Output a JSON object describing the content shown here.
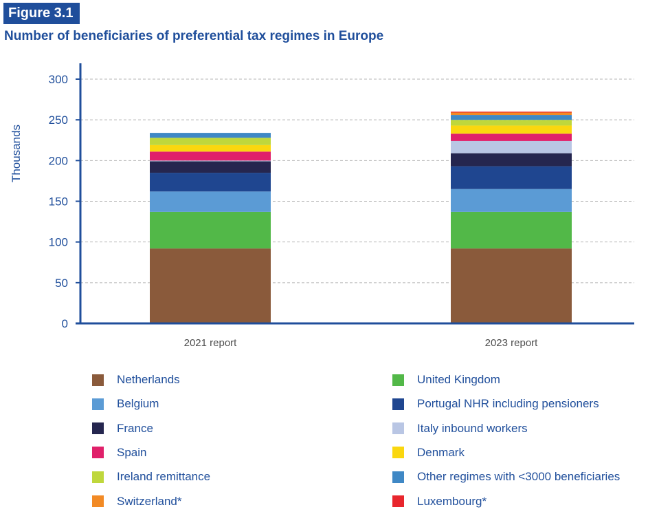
{
  "figure": {
    "label": "Figure 3.1",
    "title": "Number of beneficiaries of preferential tax regimes in Europe"
  },
  "chart_data": {
    "type": "bar",
    "stacked": true,
    "categories": [
      "2021 report",
      "2023 report"
    ],
    "ylabel": "Thousands",
    "ylim": [
      0,
      300
    ],
    "yticks": [
      0,
      50,
      100,
      150,
      200,
      250,
      300
    ],
    "grid": true,
    "legend_position": "bottom",
    "series": [
      {
        "name": "Netherlands",
        "color": "#8a5a3b",
        "values": [
          92,
          92
        ]
      },
      {
        "name": "United Kingdom",
        "color": "#52b848",
        "values": [
          45,
          45
        ]
      },
      {
        "name": "Belgium",
        "color": "#5b9bd5",
        "values": [
          25,
          28
        ]
      },
      {
        "name": "Portugal NHR including pensioners",
        "color": "#1f4690",
        "values": [
          23,
          28
        ]
      },
      {
        "name": "France",
        "color": "#25264f",
        "values": [
          14,
          16
        ]
      },
      {
        "name": "Italy inbound workers",
        "color": "#b9c6e4",
        "values": [
          1,
          15
        ]
      },
      {
        "name": "Spain",
        "color": "#e0206a",
        "values": [
          11,
          9
        ]
      },
      {
        "name": "Denmark",
        "color": "#fad70f",
        "values": [
          8,
          10
        ]
      },
      {
        "name": "Ireland remittance",
        "color": "#bfd73c",
        "values": [
          9,
          7
        ]
      },
      {
        "name": "Other regimes with <3000 beneficiaries",
        "color": "#3f88c5",
        "values": [
          6,
          6
        ]
      },
      {
        "name": "Switzerland*",
        "color": "#f28a25",
        "values": [
          0,
          3
        ]
      },
      {
        "name": "Luxembourg*",
        "color": "#e8262d",
        "values": [
          0,
          1
        ]
      }
    ]
  },
  "legend": {
    "left_column": [
      "Netherlands",
      "Belgium",
      "France",
      "Spain",
      "Ireland remittance",
      "Switzerland*"
    ],
    "right_column": [
      "United Kingdom",
      "Portugal NHR including pensioners",
      "Italy inbound workers",
      "Denmark",
      "Other regimes with <3000 beneficiaries",
      "Luxembourg*"
    ]
  }
}
